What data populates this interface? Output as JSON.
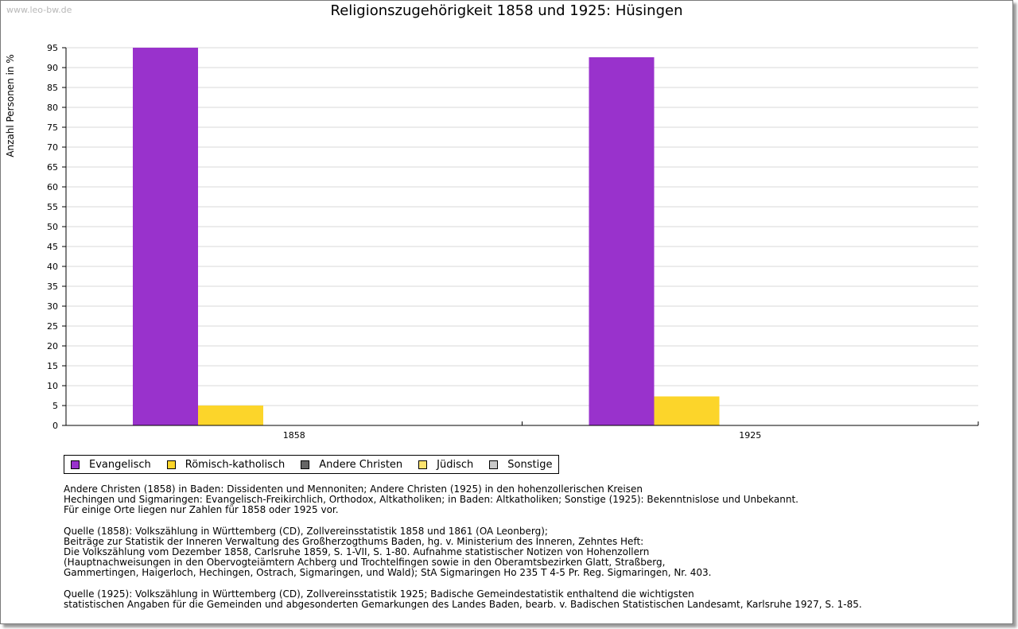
{
  "watermark": "www.leo-bw.de",
  "chart_data": {
    "type": "bar",
    "title": "Religionszugehörigkeit 1858 und 1925: Hüsingen",
    "xlabel": "",
    "ylabel": "Anzahl Personen in %",
    "ylim": [
      0,
      95
    ],
    "yticks": [
      0,
      5,
      10,
      15,
      20,
      25,
      30,
      35,
      40,
      45,
      50,
      55,
      60,
      65,
      70,
      75,
      80,
      85,
      90,
      95
    ],
    "grid": true,
    "legend_position": "bottom",
    "categories": [
      "1858",
      "1925"
    ],
    "series": [
      {
        "name": "Evangelisch",
        "color": "#9932cc",
        "values": [
          95,
          92.6
        ]
      },
      {
        "name": "Römisch-katholisch",
        "color": "#fcd52a",
        "values": [
          5,
          7.3
        ]
      },
      {
        "name": "Andere Christen",
        "color": "#666666",
        "values": [
          0,
          0
        ]
      },
      {
        "name": "Jüdisch",
        "color": "#fce36e",
        "values": [
          0,
          0
        ]
      },
      {
        "name": "Sonstige",
        "color": "#c8c8c8",
        "values": [
          0,
          0
        ]
      }
    ]
  },
  "notes": [
    "Andere Christen (1858) in Baden: Dissidenten und Mennoniten; Andere Christen (1925) in den hohenzollerischen Kreisen\nHechingen und Sigmaringen: Evangelisch-Freikirchlich, Orthodox, Altkatholiken; in Baden: Altkatholiken; Sonstige (1925): Bekenntnislose und Unbekannt.\nFür einige Orte liegen nur Zahlen für 1858 oder 1925 vor.",
    "Quelle (1858): Volkszählung in Württemberg (CD), Zollvereinsstatistik 1858 und 1861 (OA Leonberg);\nBeiträge zur Statistik der Inneren Verwaltung des Großherzogthums Baden, hg. v. Ministerium des Inneren, Zehntes Heft:\nDie Volkszählung vom Dezember 1858, Carlsruhe 1859, S. 1-VII, S. 1-80. Aufnahme statistischer Notizen von Hohenzollern\n(Hauptnachweisungen in den Obervogteiämtern Achberg und Trochtelfingen sowie in den Oberamtsbezirken Glatt, Straßberg,\nGammertingen, Haigerloch, Hechingen, Ostrach, Sigmaringen, und Wald); StA Sigmaringen Ho 235 T 4-5 Pr. Reg. Sigmaringen, Nr. 403.",
    "Quelle (1925): Volkszählung in Württemberg (CD), Zollvereinsstatistik 1925; Badische Gemeindestatistik enthaltend die wichtigsten\nstatistischen Angaben für die Gemeinden und abgesonderten Gemarkungen des Landes Baden, bearb. v. Badischen Statistischen Landesamt, Karlsruhe 1927, S. 1-85."
  ]
}
